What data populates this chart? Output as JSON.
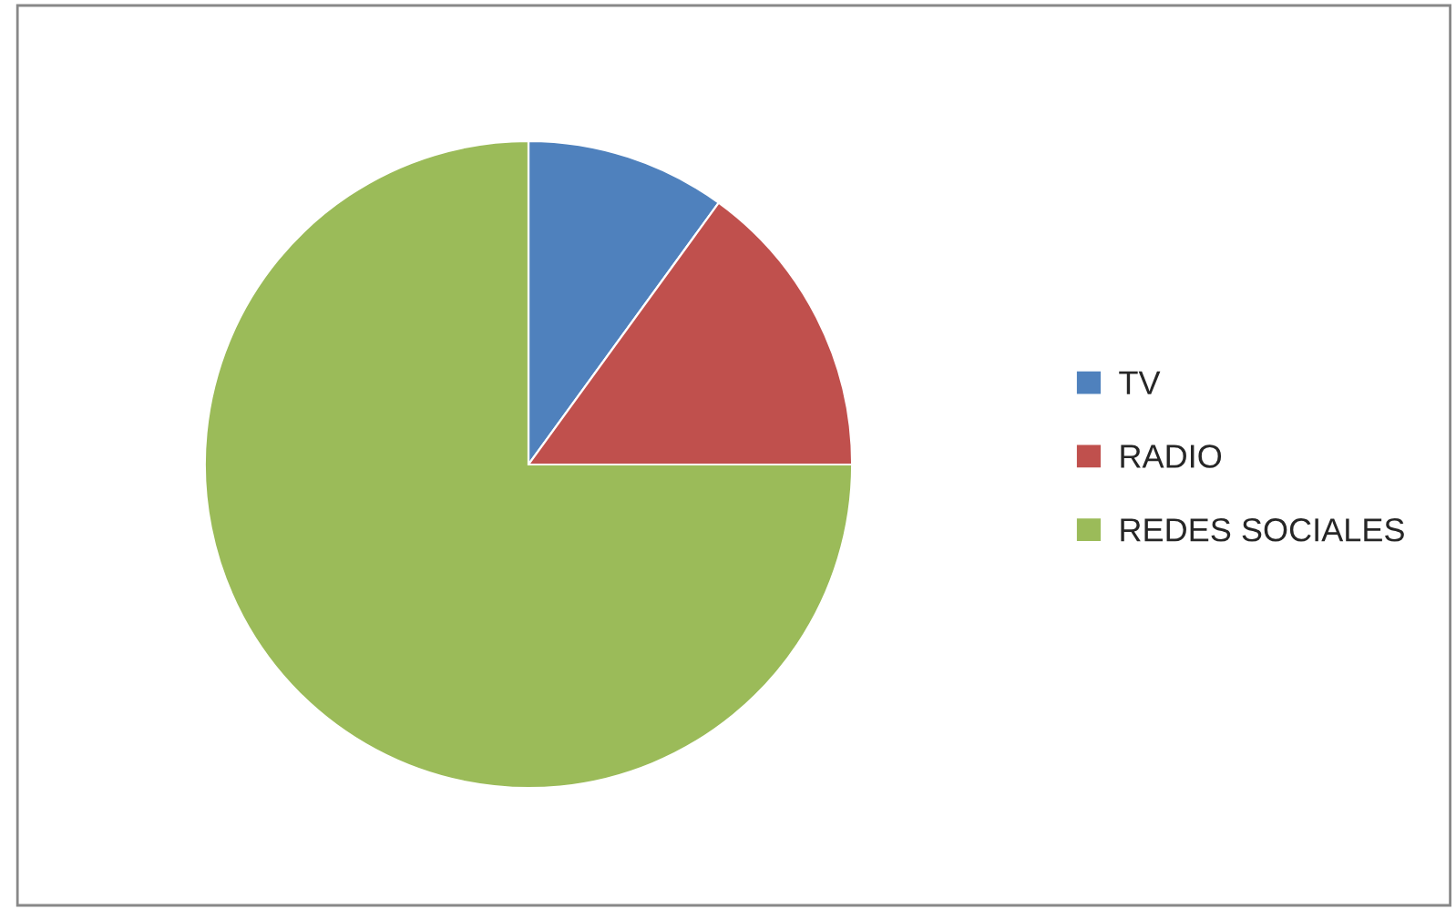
{
  "chart_data": {
    "type": "pie",
    "categories": [
      "TV",
      "RADIO",
      "REDES SOCIALES"
    ],
    "values": [
      10,
      15,
      75
    ],
    "colors": [
      "#4f81bd",
      "#c0504d",
      "#9bbb59"
    ],
    "legend": "right"
  }
}
